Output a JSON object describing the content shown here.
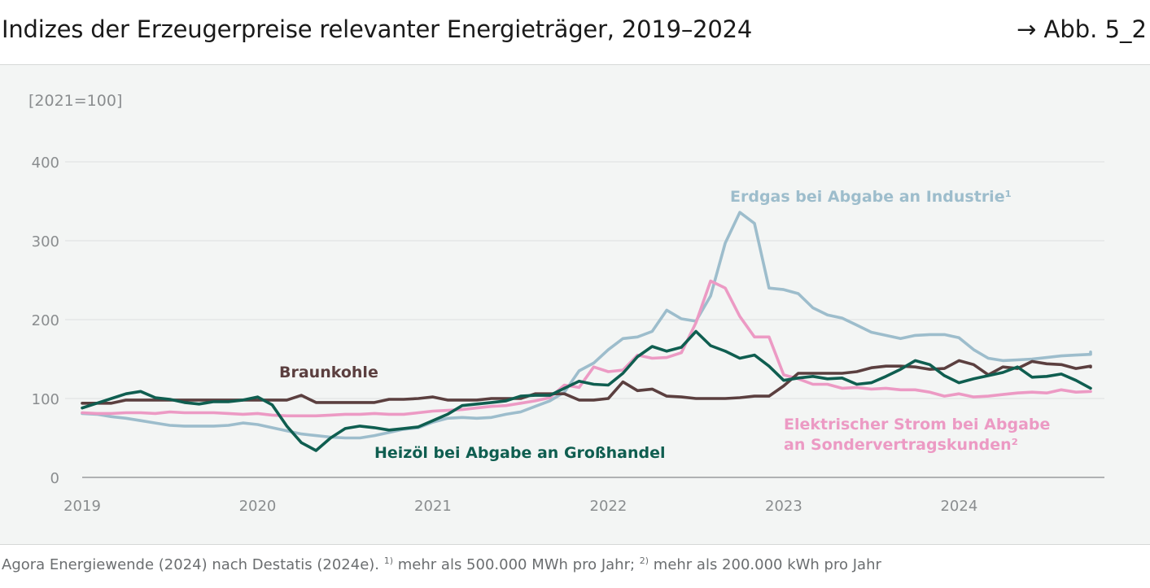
{
  "header": {
    "title": "Indizes der Erzeugerpreise relevanter Energieträger, 2019–2024",
    "figure_ref": "→ Abb. 5_2"
  },
  "footer": {
    "source_main": "Agora Energiewende (2024) nach Destatis (2024e). ",
    "note1_mark": "1)",
    "note1_text": " mehr als 500.000 MWh pro Jahr; ",
    "note2_mark": "2)",
    "note2_text": " mehr als 200.000 kWh pro Jahr"
  },
  "colors": {
    "erdgas": "#9dbdcc",
    "strom": "#ec9ac4",
    "heizoel": "#0f5e50",
    "braunkohle": "#5b3f3f",
    "grid": "#e1e4e3",
    "axis": "#9a9c9d",
    "tick_text": "#8a8d8f",
    "panel_bg": "#f3f5f4"
  },
  "chart_data": {
    "type": "line",
    "unit_label": "[2021=100]",
    "ylim": [
      0,
      400
    ],
    "yticks": [
      0,
      100,
      200,
      300,
      400
    ],
    "xlim": [
      2019.0,
      2024.75
    ],
    "xticks": [
      2019,
      2020,
      2021,
      2022,
      2023,
      2024
    ],
    "xtick_labels": [
      "2019",
      "2020",
      "2021",
      "2022",
      "2023",
      "2024"
    ],
    "grid": true,
    "legend": "inline labels",
    "series": [
      {
        "key": "erdgas",
        "name": "Erdgas bei Abgabe an Industrie",
        "footnote": "1",
        "label_lines": [
          "Erdgas bei Abgabe an Industrie¹"
        ],
        "color": "#9dbdcc",
        "x_start": 2019.0,
        "x_step": 0.08333,
        "values": [
          81,
          80,
          77,
          75,
          72,
          69,
          66,
          65,
          65,
          65,
          66,
          69,
          67,
          63,
          59,
          55,
          53,
          51,
          50,
          50,
          53,
          57,
          61,
          63,
          70,
          75,
          76,
          75,
          76,
          80,
          83,
          90,
          97,
          108,
          135,
          145,
          162,
          176,
          178,
          185,
          212,
          201,
          198,
          230,
          297,
          336,
          322,
          240,
          238,
          233,
          215,
          206,
          202,
          193,
          184,
          180,
          176,
          180,
          181,
          181,
          177,
          162,
          151,
          148,
          149,
          150,
          152,
          154,
          155,
          156,
          156,
          159
        ]
      },
      {
        "key": "strom",
        "name": "Elektrischer Strom bei Abgabe an Sondervertragskunden",
        "footnote": "2",
        "label_lines": [
          "Elektrischer Strom bei Abgabe",
          "an Sondervertragskunden²"
        ],
        "color": "#ec9ac4",
        "x_start": 2019.0,
        "x_step": 0.08333,
        "values": [
          82,
          81,
          81,
          82,
          82,
          81,
          83,
          82,
          82,
          82,
          81,
          80,
          81,
          79,
          78,
          78,
          78,
          79,
          80,
          80,
          81,
          80,
          80,
          82,
          84,
          85,
          86,
          88,
          90,
          91,
          94,
          97,
          101,
          117,
          114,
          140,
          134,
          136,
          155,
          151,
          152,
          158,
          196,
          249,
          240,
          204,
          178,
          178,
          130,
          125,
          118,
          118,
          113,
          114,
          112,
          113,
          111,
          111,
          108,
          103,
          106,
          102,
          103,
          105,
          107,
          108,
          107,
          111,
          108,
          109
        ]
      },
      {
        "key": "heizoel",
        "name": "Heizöl bei Abgabe an Großhandel",
        "footnote": "",
        "label_lines": [
          "Heizöl bei Abgabe an Großhandel"
        ],
        "color": "#0f5e50",
        "x_start": 2019.0,
        "x_step": 0.08333,
        "values": [
          88,
          94,
          100,
          106,
          109,
          101,
          99,
          95,
          93,
          96,
          96,
          98,
          102,
          92,
          65,
          44,
          34,
          50,
          62,
          65,
          63,
          60,
          62,
          64,
          72,
          80,
          91,
          93,
          95,
          97,
          103,
          104,
          104,
          113,
          122,
          118,
          117,
          132,
          153,
          166,
          160,
          165,
          185,
          167,
          160,
          151,
          155,
          141,
          123,
          126,
          128,
          125,
          126,
          118,
          120,
          128,
          137,
          148,
          143,
          129,
          120,
          125,
          129,
          133,
          140,
          127,
          128,
          131,
          123,
          113
        ]
      },
      {
        "key": "braunkohle",
        "name": "Braunkohle",
        "footnote": "",
        "label_lines": [
          "Braunkohle"
        ],
        "color": "#5b3f3f",
        "x_start": 2019.0,
        "x_step": 0.08333,
        "values": [
          94,
          94,
          94,
          98,
          98,
          98,
          98,
          98,
          98,
          98,
          98,
          98,
          98,
          98,
          98,
          104,
          95,
          95,
          95,
          95,
          95,
          99,
          99,
          100,
          102,
          98,
          98,
          98,
          100,
          100,
          100,
          106,
          106,
          106,
          98,
          98,
          100,
          121,
          110,
          112,
          103,
          102,
          100,
          100,
          100,
          101,
          103,
          103,
          116,
          132,
          132,
          132,
          132,
          134,
          139,
          141,
          141,
          140,
          137,
          138,
          148,
          143,
          130,
          140,
          138,
          147,
          144,
          143,
          138,
          141,
          140
        ]
      }
    ]
  }
}
